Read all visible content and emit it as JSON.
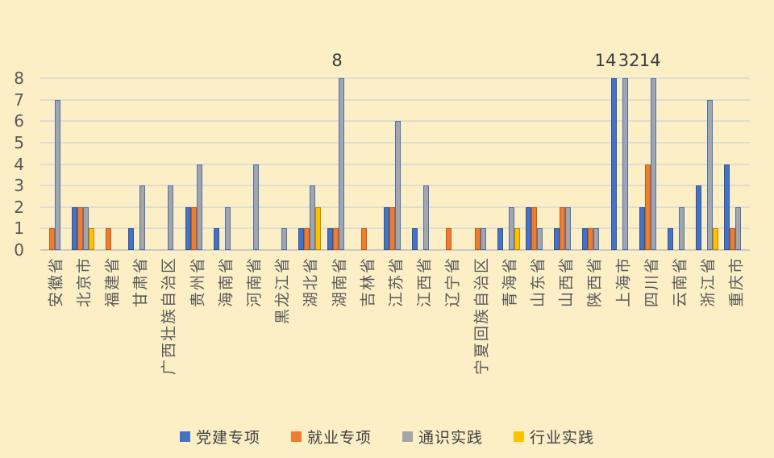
{
  "page": {
    "background_color": "#FCEFC6"
  },
  "chart_data": {
    "type": "bar",
    "title": "",
    "xlabel": "",
    "ylabel": "",
    "ylim": [
      0,
      8
    ],
    "ytick_step": 1,
    "grid": true,
    "legend_position": "bottom",
    "clip_at_max": true,
    "categories": [
      "安徽省",
      "北京市",
      "福建省",
      "甘肃省",
      "广西壮族自治区",
      "贵州省",
      "海南省",
      "河南省",
      "黑龙江省",
      "湖北省",
      "湖南省",
      "吉林省",
      "江苏省",
      "江西省",
      "辽宁省",
      "宁夏回族自治区",
      "青海省",
      "山东省",
      "山西省",
      "陕西省",
      "上海市",
      "四川省",
      "云南省",
      "浙江省",
      "重庆市"
    ],
    "series": [
      {
        "name": "党建专项",
        "color": "#4472C4",
        "border_color": "#2F5597",
        "values": [
          0,
          2,
          0,
          1,
          0,
          2,
          1,
          0,
          0,
          1,
          1,
          0,
          2,
          1,
          0,
          0,
          1,
          2,
          1,
          1,
          14,
          2,
          1,
          3,
          4
        ]
      },
      {
        "name": "就业专项",
        "color": "#ED7D31",
        "border_color": "#C55A11",
        "values": [
          1,
          2,
          1,
          0,
          0,
          2,
          0,
          0,
          0,
          1,
          1,
          1,
          2,
          0,
          1,
          1,
          0,
          2,
          2,
          1,
          0,
          4,
          0,
          0,
          1
        ]
      },
      {
        "name": "通识实践",
        "color": "#A5A5A5",
        "border_color": "#4472C4",
        "values": [
          7,
          2,
          0,
          3,
          3,
          4,
          2,
          4,
          1,
          3,
          8,
          0,
          6,
          3,
          0,
          1,
          2,
          1,
          2,
          1,
          32,
          14,
          2,
          7,
          2
        ]
      },
      {
        "name": "行业实践",
        "color": "#FFC000",
        "border_color": "#BF8F00",
        "values": [
          0,
          1,
          0,
          0,
          0,
          0,
          0,
          0,
          0,
          2,
          0,
          0,
          0,
          0,
          0,
          0,
          1,
          0,
          0,
          0,
          0,
          0,
          0,
          1,
          0
        ]
      }
    ],
    "data_labels": [
      {
        "category": "湖南省",
        "series": "通识实践",
        "text": "8",
        "dx": -5
      },
      {
        "category": "上海市",
        "series": "党建专项",
        "text": "14",
        "dx": -10
      },
      {
        "category": "上海市",
        "series": "通识实践",
        "text": "32",
        "dx": 5
      },
      {
        "category": "四川省",
        "series": "通识实践",
        "text": "14",
        "dx": -4
      }
    ]
  }
}
